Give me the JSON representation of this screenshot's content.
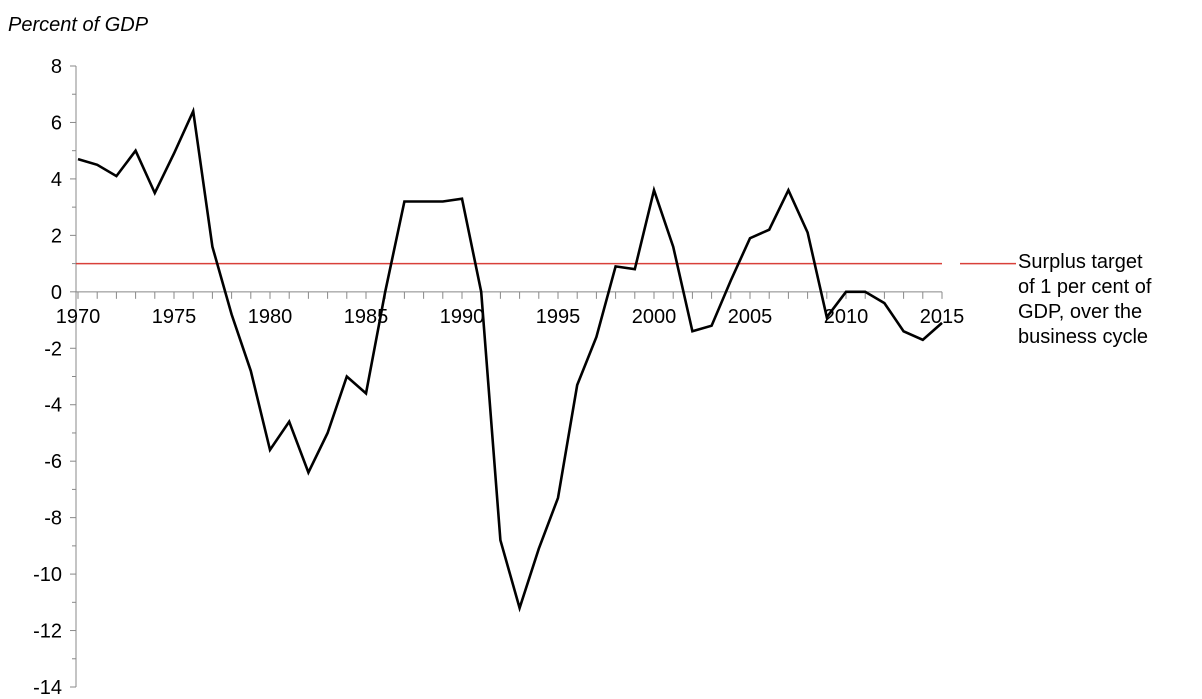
{
  "chart_data": {
    "type": "line",
    "ylabel": "Percent of GDP",
    "ylim": [
      -14,
      8
    ],
    "yticks": [
      8,
      6,
      4,
      2,
      0,
      -2,
      -4,
      -6,
      -8,
      -10,
      -12,
      -14
    ],
    "xlim": [
      1970,
      2015
    ],
    "xticks": [
      1970,
      1975,
      1980,
      1985,
      1990,
      1995,
      2000,
      2005,
      2010,
      2015
    ],
    "series": [
      {
        "color": "#000000",
        "x": [
          1970,
          1971,
          1972,
          1973,
          1974,
          1975,
          1976,
          1977,
          1978,
          1979,
          1980,
          1981,
          1982,
          1983,
          1984,
          1985,
          1986,
          1987,
          1988,
          1989,
          1990,
          1991,
          1992,
          1993,
          1994,
          1995,
          1996,
          1997,
          1998,
          1999,
          2000,
          2001,
          2002,
          2003,
          2004,
          2005,
          2006,
          2007,
          2008,
          2009,
          2010,
          2011,
          2012,
          2013,
          2014,
          2015
        ],
        "values": [
          4.7,
          4.5,
          4.1,
          5.0,
          3.5,
          4.9,
          6.4,
          1.6,
          -0.8,
          -2.8,
          -5.6,
          -4.6,
          -6.4,
          -5.0,
          -3.0,
          -3.6,
          0.0,
          3.2,
          3.2,
          3.2,
          3.3,
          0.0,
          -8.8,
          -11.2,
          -9.1,
          -7.3,
          -3.3,
          -1.6,
          0.9,
          0.8,
          3.6,
          1.6,
          -1.4,
          -1.2,
          0.4,
          1.9,
          2.2,
          3.6,
          2.1,
          -0.9,
          0.0,
          0.0,
          -0.4,
          -1.4,
          -1.7,
          -1.1
        ]
      }
    ],
    "reference_line": {
      "value": 1,
      "color": "#d9403a",
      "label_lines": [
        "Surplus target",
        "of 1 per cent of",
        "GDP, over the",
        "business cycle"
      ]
    }
  }
}
